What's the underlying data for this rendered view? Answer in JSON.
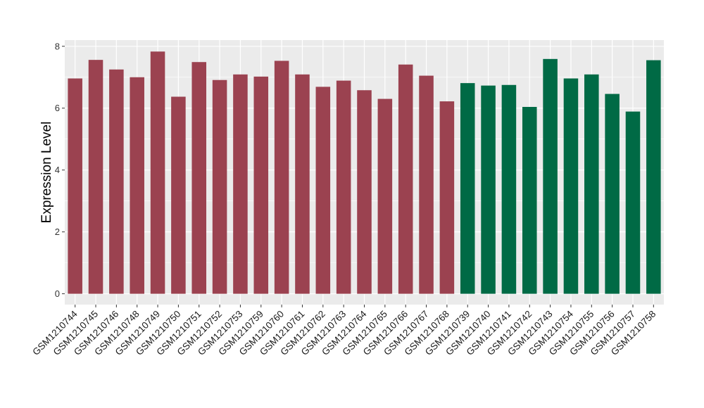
{
  "chart_data": {
    "type": "bar",
    "title": "",
    "xlabel": "",
    "ylabel": "Expression Level",
    "ylim": [
      -0.35,
      8.2
    ],
    "yticks": [
      0,
      2,
      4,
      6,
      8
    ],
    "grid": true,
    "categories": [
      "GSM1210744",
      "GSM1210745",
      "GSM1210746",
      "GSM1210748",
      "GSM1210749",
      "GSM1210750",
      "GSM1210751",
      "GSM1210752",
      "GSM1210753",
      "GSM1210759",
      "GSM1210760",
      "GSM1210761",
      "GSM1210762",
      "GSM1210763",
      "GSM1210764",
      "GSM1210765",
      "GSM1210766",
      "GSM1210767",
      "GSM1210768",
      "GSM1210739",
      "GSM1210740",
      "GSM1210741",
      "GSM1210742",
      "GSM1210743",
      "GSM1210754",
      "GSM1210755",
      "GSM1210756",
      "GSM1210757",
      "GSM1210758"
    ],
    "values": [
      6.96,
      7.56,
      7.25,
      7.0,
      7.83,
      6.37,
      7.49,
      6.91,
      7.09,
      7.02,
      7.53,
      7.09,
      6.69,
      6.89,
      6.58,
      6.3,
      7.41,
      7.05,
      6.22,
      6.81,
      6.73,
      6.75,
      6.04,
      7.59,
      6.96,
      7.09,
      6.46,
      5.89,
      7.55
    ],
    "bar_colors": [
      "#9b4250",
      "#9b4250",
      "#9b4250",
      "#9b4250",
      "#9b4250",
      "#9b4250",
      "#9b4250",
      "#9b4250",
      "#9b4250",
      "#9b4250",
      "#9b4250",
      "#9b4250",
      "#9b4250",
      "#9b4250",
      "#9b4250",
      "#9b4250",
      "#9b4250",
      "#9b4250",
      "#9b4250",
      "#006a45",
      "#006a45",
      "#006a45",
      "#006a45",
      "#006a45",
      "#006a45",
      "#006a45",
      "#006a45",
      "#006a45",
      "#006a45"
    ],
    "panel_background": "#ebebeb",
    "grid_color": "#ffffff"
  }
}
